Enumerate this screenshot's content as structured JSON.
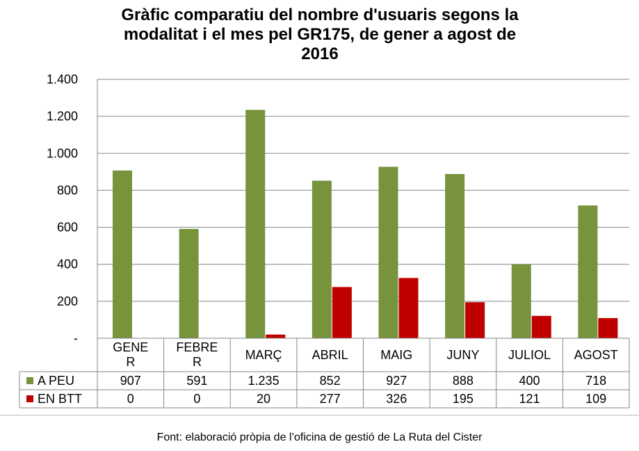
{
  "title": "Gràfic comparatiu del nombre d'usuaris segons la modalitat i el mes pel GR175, de gener a  agost de 2016",
  "title_lines": [
    "Gràfic comparatiu del nombre d'usuaris segons la",
    "modalitat i el mes pel GR175, de gener a  agost de",
    "2016"
  ],
  "source": "Font: elaboració pròpia de l’oficina de gestió de La Ruta del Cister",
  "chart_data": {
    "type": "bar",
    "title": "Gràfic comparatiu del nombre d'usuaris segons la modalitat i el mes pel GR175, de gener a  agost de 2016",
    "categories": [
      "GENER",
      "FEBRER",
      "MARÇ",
      "ABRIL",
      "MAIG",
      "JUNY",
      "JULIOL",
      "AGOST"
    ],
    "category_label_lines": [
      [
        "GENE",
        "R"
      ],
      [
        "FEBRE",
        "R"
      ],
      [
        "MARÇ"
      ],
      [
        "ABRIL"
      ],
      [
        "MAIG"
      ],
      [
        "JUNY"
      ],
      [
        "JULIOL"
      ],
      [
        "AGOST"
      ]
    ],
    "series": [
      {
        "name": "A PEU",
        "color": "#77933C",
        "values": [
          907,
          591,
          1235,
          852,
          927,
          888,
          400,
          718
        ],
        "labels": [
          "907",
          "591",
          "1.235",
          "852",
          "927",
          "888",
          "400",
          "718"
        ]
      },
      {
        "name": "EN BTT",
        "color": "#C00000",
        "values": [
          0,
          0,
          20,
          277,
          326,
          195,
          121,
          109
        ],
        "labels": [
          "0",
          "0",
          "20",
          "277",
          "326",
          "195",
          "121",
          "109"
        ]
      }
    ],
    "ylim": [
      0,
      1400
    ],
    "yticks": [
      0,
      200,
      400,
      600,
      800,
      1000,
      1200,
      1400
    ],
    "ytick_labels": [
      "-",
      "200",
      "400",
      "600",
      "800",
      "1.000",
      "1.200",
      "1.400"
    ],
    "xlabel": "",
    "ylabel": "",
    "grid": true,
    "legend": "data-table"
  }
}
